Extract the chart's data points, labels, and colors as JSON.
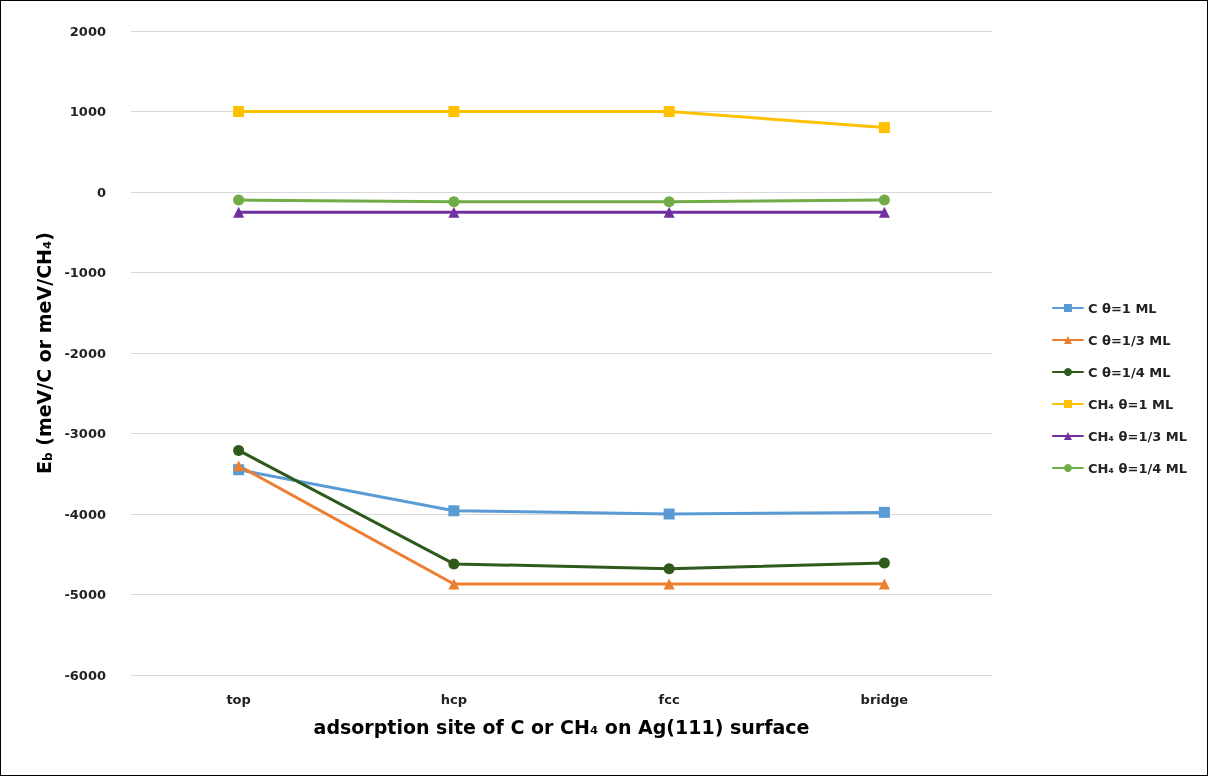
{
  "chart_data": {
    "type": "line",
    "xlabel": "adsorption site of C or CH₄ on Ag(111) surface",
    "ylabel": "E$_{b}$ (meV/C or meV/CH₄)",
    "categories": [
      "top",
      "hcp",
      "fcc",
      "bridge"
    ],
    "series": [
      {
        "name": "C θ=1 ML",
        "color": "#5b9bd5",
        "marker": "square",
        "values": [
          -3450,
          -3960,
          -4000,
          -3980
        ]
      },
      {
        "name": "C θ=1/3 ML",
        "color": "#ed7d31",
        "marker": "triangle",
        "values": [
          -3400,
          -4870,
          -4870,
          -4870
        ]
      },
      {
        "name": "C θ=1/4 ML",
        "color": "#2e5a1c",
        "marker": "circle",
        "values": [
          -3210,
          -4620,
          -4680,
          -4610
        ]
      },
      {
        "name": "CH₄ θ=1 ML",
        "color": "#ffc000",
        "marker": "square",
        "values": [
          1000,
          1000,
          1000,
          800
        ]
      },
      {
        "name": "CH₄ θ=1/3 ML",
        "color": "#7030a0",
        "marker": "triangle",
        "values": [
          -250,
          -250,
          -250,
          -250
        ]
      },
      {
        "name": "CH₄ θ=1/4 ML",
        "color": "#70ad47",
        "marker": "circle",
        "values": [
          -100,
          -120,
          -120,
          -100
        ]
      }
    ],
    "ylim": [
      -6000,
      2000
    ],
    "yticks": [
      -6000,
      -5000,
      -4000,
      -3000,
      -2000,
      -1000,
      0,
      1000,
      2000
    ],
    "grid": "y",
    "legend": "right",
    "line_style": "solid"
  }
}
